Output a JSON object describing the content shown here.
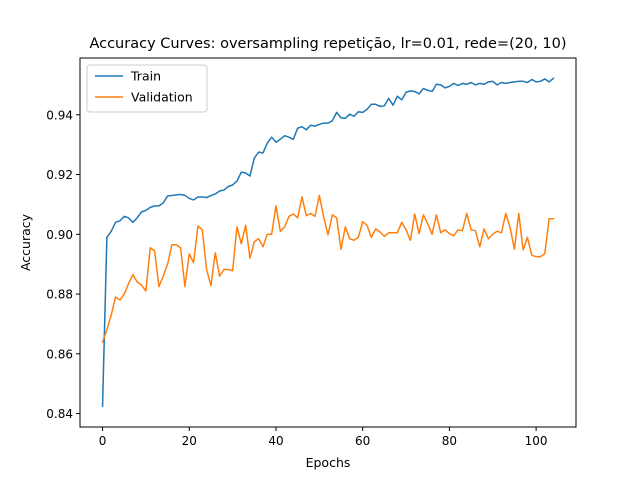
{
  "chart_data": {
    "type": "line",
    "title": "Accuracy Curves: oversampling repetição, lr=0.01, rede=(20, 10)",
    "xlabel": "Epochs",
    "ylabel": "Accuracy",
    "xlim": [
      -5.2,
      109.2
    ],
    "ylim": [
      0.8355,
      0.959
    ],
    "xticks": [
      0,
      20,
      40,
      60,
      80,
      100
    ],
    "yticks": [
      0.84,
      0.86,
      0.88,
      0.9,
      0.92,
      0.94
    ],
    "ytick_labels": [
      "0.84",
      "0.86",
      "0.88",
      "0.90",
      "0.92",
      "0.94"
    ],
    "grid": false,
    "legend_position": "top-left",
    "series": [
      {
        "name": "Train",
        "color": "#1f77b4",
        "values": [
          0.8425,
          0.899,
          0.901,
          0.904,
          0.9045,
          0.906,
          0.9055,
          0.904,
          0.9055,
          0.9075,
          0.908,
          0.909,
          0.9095,
          0.9095,
          0.9105,
          0.9128,
          0.913,
          0.9132,
          0.9133,
          0.913,
          0.912,
          0.9115,
          0.9125,
          0.9125,
          0.9123,
          0.913,
          0.9135,
          0.9145,
          0.9148,
          0.916,
          0.9165,
          0.9178,
          0.9208,
          0.9205,
          0.9195,
          0.9255,
          0.9275,
          0.9272,
          0.9305,
          0.9325,
          0.9308,
          0.9318,
          0.933,
          0.9325,
          0.9318,
          0.9355,
          0.936,
          0.935,
          0.9365,
          0.9362,
          0.9368,
          0.9372,
          0.9372,
          0.938,
          0.9408,
          0.939,
          0.9388,
          0.9402,
          0.9395,
          0.941,
          0.9408,
          0.9418,
          0.9435,
          0.9435,
          0.9428,
          0.943,
          0.9455,
          0.9432,
          0.9462,
          0.945,
          0.9475,
          0.948,
          0.9478,
          0.947,
          0.9488,
          0.9482,
          0.9478,
          0.9502,
          0.95,
          0.949,
          0.9495,
          0.9505,
          0.9498,
          0.9505,
          0.9502,
          0.9508,
          0.95,
          0.9505,
          0.9502,
          0.951,
          0.9512,
          0.95,
          0.9508,
          0.9505,
          0.9508,
          0.951,
          0.9512,
          0.9512,
          0.9508,
          0.9518,
          0.951,
          0.9512,
          0.952,
          0.951,
          0.9522
        ]
      },
      {
        "name": "Validation",
        "color": "#ff7f0e",
        "values": [
          0.864,
          0.868,
          0.873,
          0.879,
          0.878,
          0.88,
          0.8835,
          0.8865,
          0.884,
          0.883,
          0.881,
          0.8955,
          0.8945,
          0.8825,
          0.886,
          0.89,
          0.8965,
          0.8965,
          0.8955,
          0.8825,
          0.8935,
          0.8905,
          0.9028,
          0.9015,
          0.8882,
          0.8828,
          0.8938,
          0.886,
          0.8882,
          0.8882,
          0.8878,
          0.9025,
          0.8968,
          0.903,
          0.892,
          0.8975,
          0.8985,
          0.8958,
          0.9,
          0.9,
          0.9095,
          0.901,
          0.9025,
          0.906,
          0.9068,
          0.9055,
          0.9125,
          0.9062,
          0.907,
          0.906,
          0.913,
          0.9058,
          0.8998,
          0.9065,
          0.9055,
          0.895,
          0.9025,
          0.8985,
          0.898,
          0.899,
          0.9042,
          0.903,
          0.899,
          0.9018,
          0.9008,
          0.8993,
          0.9005,
          0.9005,
          0.9005,
          0.904,
          0.9015,
          0.898,
          0.9068,
          0.9002,
          0.9065,
          0.9035,
          0.9,
          0.9065,
          0.9005,
          0.9015,
          0.9002,
          0.8995,
          0.9015,
          0.9012,
          0.907,
          0.9015,
          0.9012,
          0.8958,
          0.9018,
          0.8985,
          0.9,
          0.901,
          0.9005,
          0.907,
          0.9022,
          0.895,
          0.907,
          0.8948,
          0.899,
          0.893,
          0.8925,
          0.8925,
          0.8935,
          0.9052,
          0.9052
        ]
      }
    ]
  }
}
